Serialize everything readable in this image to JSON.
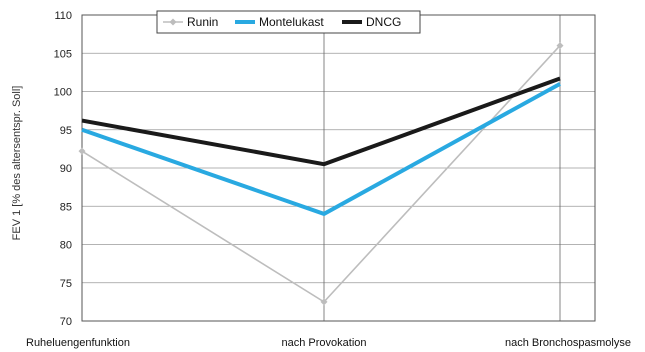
{
  "chart_data": {
    "type": "line",
    "title": "",
    "xlabel": "",
    "ylabel": "FEV 1 [% des altersentspr. Soll]",
    "ylim": [
      70,
      110
    ],
    "yticks": [
      70,
      75,
      80,
      85,
      90,
      95,
      100,
      105,
      110
    ],
    "categories": [
      "Ruheluengenfunktion",
      "nach Provokation",
      "nach Bronchospasmolyse"
    ],
    "grid": true,
    "legend_position": "top-center",
    "series": [
      {
        "name": "Runin",
        "color": "#bdbdbd",
        "marker": "diamond",
        "values": [
          92.2,
          72.5,
          106.0
        ]
      },
      {
        "name": "Montelukast",
        "color": "#29a9e1",
        "marker": "none",
        "values": [
          95.0,
          84.0,
          101.0
        ]
      },
      {
        "name": "DNCG",
        "color": "#1a1a1a",
        "marker": "none",
        "values": [
          96.2,
          90.5,
          101.7
        ]
      }
    ]
  }
}
